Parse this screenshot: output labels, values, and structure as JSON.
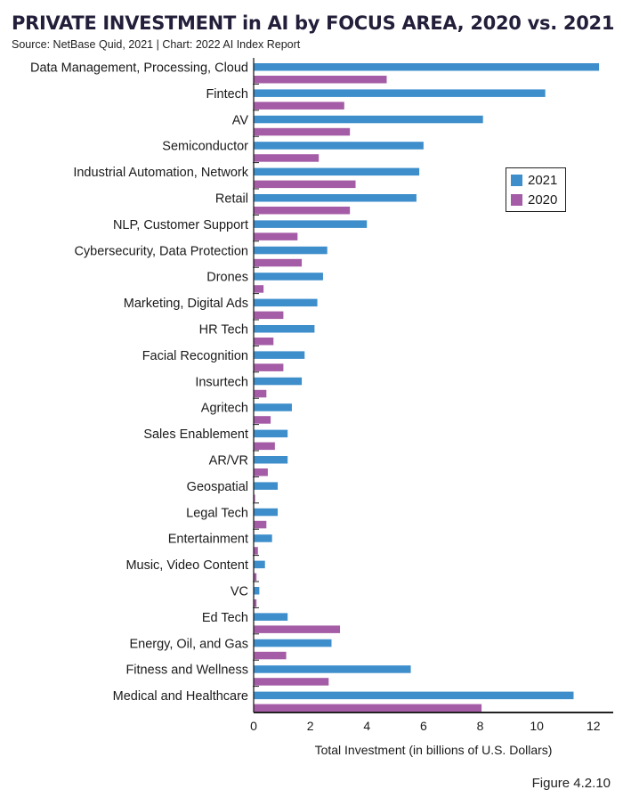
{
  "header": {
    "title": "PRIVATE INVESTMENT in AI by FOCUS AREA, 2020 vs. 2021",
    "subtitle": "Source: NetBase Quid, 2021 | Chart: 2022 AI Index Report"
  },
  "footer": {
    "figure_label": "Figure 4.2.10"
  },
  "colors": {
    "series_2021": "#3d8ecb",
    "series_2020": "#a55ca6"
  },
  "chart_data": {
    "type": "bar",
    "orientation": "horizontal",
    "categories": [
      "Data Management, Processing, Cloud",
      "Fintech",
      "AV",
      "Semiconductor",
      "Industrial Automation, Network",
      "Retail",
      "NLP, Customer Support",
      "Cybersecurity, Data Protection",
      "Drones",
      "Marketing, Digital Ads",
      "HR Tech",
      "Facial Recognition",
      "Insurtech",
      "Agritech",
      "Sales Enablement",
      "AR/VR",
      "Geospatial",
      "Legal Tech",
      "Entertainment",
      "Music, Video Content",
      "VC",
      "Ed Tech",
      "Energy, Oil, and Gas",
      "Fitness and Wellness",
      "Medical and Healthcare"
    ],
    "series": [
      {
        "name": "2021",
        "color": "#3d8ecb",
        "values": [
          12.2,
          10.3,
          8.1,
          6.0,
          5.85,
          5.75,
          4.0,
          2.6,
          2.45,
          2.25,
          2.15,
          1.8,
          1.7,
          1.35,
          1.2,
          1.2,
          0.85,
          0.85,
          0.65,
          0.4,
          0.2,
          1.2,
          2.75,
          5.55,
          11.3
        ]
      },
      {
        "name": "2020",
        "color": "#a55ca6",
        "values": [
          4.7,
          3.2,
          3.4,
          2.3,
          3.6,
          3.4,
          1.55,
          1.7,
          0.35,
          1.05,
          0.7,
          1.05,
          0.45,
          0.6,
          0.75,
          0.5,
          0.05,
          0.45,
          0.15,
          0.1,
          0.1,
          3.05,
          1.15,
          2.65,
          8.05
        ]
      }
    ],
    "xlabel": "Total Investment (in billions of U.S. Dollars)",
    "xlim": [
      0,
      12.7
    ],
    "xticks": [
      0,
      2,
      4,
      6,
      8,
      10,
      12
    ],
    "grid": false,
    "legend_position": "right"
  }
}
